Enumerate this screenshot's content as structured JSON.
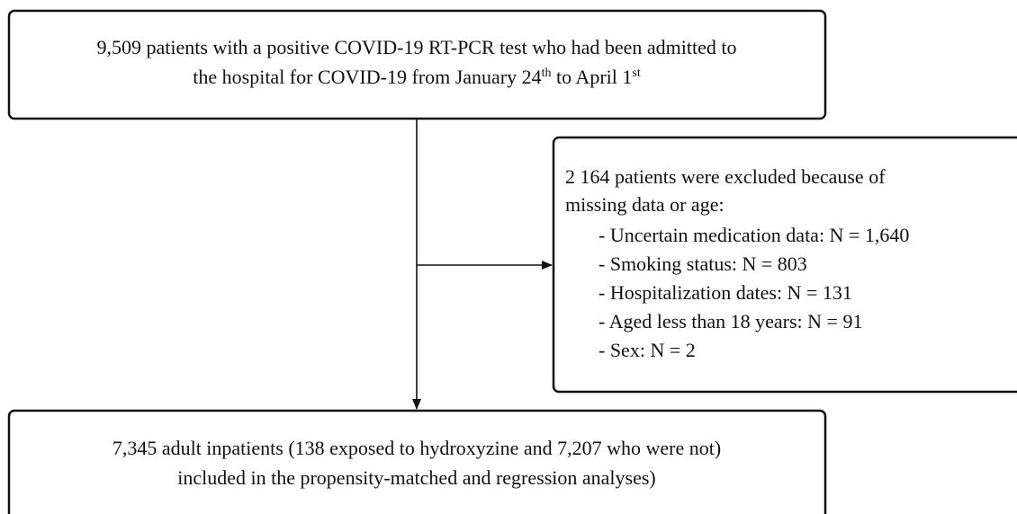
{
  "top": {
    "line1": "9,509 patients with a positive COVID-19 RT-PCR test who had been admitted to",
    "line2": [
      "the hospital for COVID-19 from January 24",
      "th",
      " to April 1",
      "st"
    ]
  },
  "excluded": {
    "lines": [
      "2 164 patients were excluded because of",
      "missing data or age:"
    ],
    "items": [
      "- Uncertain medication data: N = 1,640",
      "- Smoking status: N = 803",
      "- Hospitalization dates: N = 131",
      "- Aged less than 18 years: N = 91",
      "- Sex: N = 2"
    ]
  },
  "bottom": {
    "lines": [
      "7,345 adult inpatients (138 exposed to hydroxyzine and 7,207 who were not)",
      "included in the propensity-matched and regression analyses)"
    ]
  }
}
